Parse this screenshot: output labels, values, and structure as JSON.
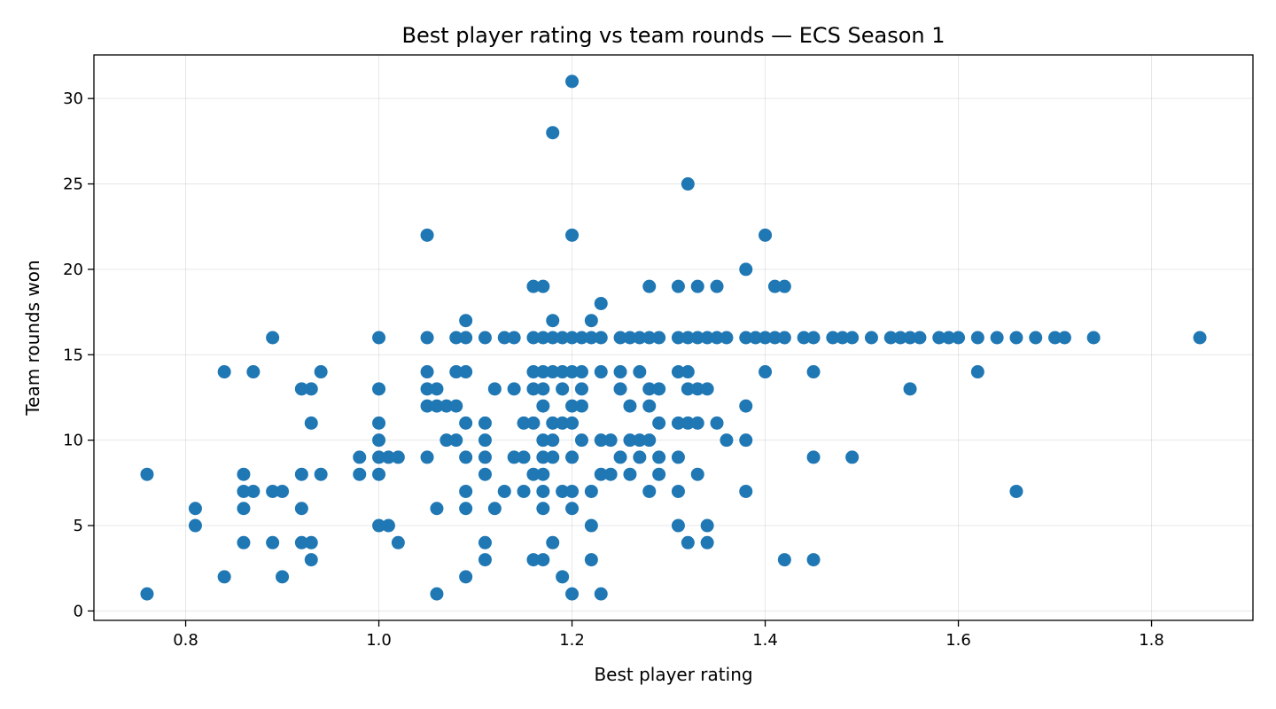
{
  "chart_data": {
    "type": "scatter",
    "title": "Best player rating vs team rounds — ECS Season 1",
    "xlabel": "Best player rating",
    "ylabel": "Team rounds won",
    "xlim": [
      0.705,
      1.905
    ],
    "ylim": [
      -0.55,
      32.55
    ],
    "xticks": [
      0.8,
      1.0,
      1.2,
      1.4,
      1.6,
      1.8
    ],
    "xtick_labels": [
      "0.8",
      "1.0",
      "1.2",
      "1.4",
      "1.6",
      "1.8"
    ],
    "yticks": [
      0,
      5,
      10,
      15,
      20,
      25,
      30
    ],
    "ytick_labels": [
      "0",
      "5",
      "10",
      "15",
      "20",
      "25",
      "30"
    ],
    "grid": true,
    "marker_color": "#1f77b4",
    "points": [
      [
        0.76,
        8
      ],
      [
        0.76,
        1
      ],
      [
        0.81,
        6
      ],
      [
        0.81,
        5
      ],
      [
        0.84,
        14
      ],
      [
        0.84,
        2
      ],
      [
        0.86,
        8
      ],
      [
        0.86,
        7
      ],
      [
        0.86,
        6
      ],
      [
        0.86,
        4
      ],
      [
        0.87,
        14
      ],
      [
        0.87,
        7
      ],
      [
        0.89,
        16
      ],
      [
        0.89,
        7
      ],
      [
        0.89,
        4
      ],
      [
        0.9,
        7
      ],
      [
        0.9,
        2
      ],
      [
        0.92,
        13
      ],
      [
        0.92,
        8
      ],
      [
        0.92,
        6
      ],
      [
        0.92,
        4
      ],
      [
        0.93,
        13
      ],
      [
        0.93,
        11
      ],
      [
        0.93,
        4
      ],
      [
        0.93,
        3
      ],
      [
        0.94,
        14
      ],
      [
        0.94,
        8
      ],
      [
        0.98,
        9
      ],
      [
        0.98,
        8
      ],
      [
        1.0,
        16
      ],
      [
        1.0,
        13
      ],
      [
        1.0,
        11
      ],
      [
        1.0,
        10
      ],
      [
        1.0,
        9
      ],
      [
        1.0,
        8
      ],
      [
        1.0,
        5
      ],
      [
        1.01,
        9
      ],
      [
        1.01,
        5
      ],
      [
        1.02,
        9
      ],
      [
        1.02,
        4
      ],
      [
        1.05,
        22
      ],
      [
        1.05,
        16
      ],
      [
        1.05,
        14
      ],
      [
        1.05,
        13
      ],
      [
        1.05,
        12
      ],
      [
        1.05,
        9
      ],
      [
        1.06,
        13
      ],
      [
        1.06,
        12
      ],
      [
        1.06,
        6
      ],
      [
        1.06,
        1
      ],
      [
        1.07,
        12
      ],
      [
        1.07,
        10
      ],
      [
        1.08,
        16
      ],
      [
        1.08,
        14
      ],
      [
        1.08,
        12
      ],
      [
        1.08,
        10
      ],
      [
        1.09,
        17
      ],
      [
        1.09,
        16
      ],
      [
        1.09,
        14
      ],
      [
        1.09,
        11
      ],
      [
        1.09,
        9
      ],
      [
        1.09,
        7
      ],
      [
        1.09,
        6
      ],
      [
        1.09,
        2
      ],
      [
        1.11,
        16
      ],
      [
        1.11,
        11
      ],
      [
        1.11,
        10
      ],
      [
        1.11,
        9
      ],
      [
        1.11,
        8
      ],
      [
        1.11,
        4
      ],
      [
        1.11,
        3
      ],
      [
        1.12,
        13
      ],
      [
        1.12,
        6
      ],
      [
        1.13,
        16
      ],
      [
        1.13,
        7
      ],
      [
        1.14,
        16
      ],
      [
        1.14,
        13
      ],
      [
        1.14,
        9
      ],
      [
        1.15,
        11
      ],
      [
        1.15,
        9
      ],
      [
        1.15,
        7
      ],
      [
        1.16,
        19
      ],
      [
        1.16,
        16
      ],
      [
        1.16,
        14
      ],
      [
        1.16,
        13
      ],
      [
        1.16,
        11
      ],
      [
        1.16,
        8
      ],
      [
        1.16,
        3
      ],
      [
        1.17,
        19
      ],
      [
        1.17,
        16
      ],
      [
        1.17,
        14
      ],
      [
        1.17,
        13
      ],
      [
        1.17,
        12
      ],
      [
        1.17,
        10
      ],
      [
        1.17,
        9
      ],
      [
        1.17,
        8
      ],
      [
        1.17,
        7
      ],
      [
        1.17,
        6
      ],
      [
        1.17,
        3
      ],
      [
        1.18,
        17
      ],
      [
        1.18,
        16
      ],
      [
        1.18,
        14
      ],
      [
        1.18,
        11
      ],
      [
        1.18,
        10
      ],
      [
        1.18,
        9
      ],
      [
        1.18,
        4
      ],
      [
        1.18,
        28
      ],
      [
        1.19,
        16
      ],
      [
        1.19,
        14
      ],
      [
        1.19,
        13
      ],
      [
        1.19,
        11
      ],
      [
        1.19,
        7
      ],
      [
        1.19,
        2
      ],
      [
        1.2,
        31
      ],
      [
        1.2,
        22
      ],
      [
        1.2,
        16
      ],
      [
        1.2,
        14
      ],
      [
        1.2,
        12
      ],
      [
        1.2,
        11
      ],
      [
        1.2,
        9
      ],
      [
        1.2,
        7
      ],
      [
        1.2,
        6
      ],
      [
        1.2,
        1
      ],
      [
        1.21,
        16
      ],
      [
        1.21,
        14
      ],
      [
        1.21,
        13
      ],
      [
        1.21,
        12
      ],
      [
        1.21,
        10
      ],
      [
        1.22,
        17
      ],
      [
        1.22,
        16
      ],
      [
        1.22,
        7
      ],
      [
        1.22,
        5
      ],
      [
        1.22,
        3
      ],
      [
        1.23,
        18
      ],
      [
        1.23,
        16
      ],
      [
        1.23,
        14
      ],
      [
        1.23,
        10
      ],
      [
        1.23,
        8
      ],
      [
        1.23,
        1
      ],
      [
        1.24,
        10
      ],
      [
        1.24,
        8
      ],
      [
        1.25,
        16
      ],
      [
        1.25,
        14
      ],
      [
        1.25,
        13
      ],
      [
        1.25,
        9
      ],
      [
        1.26,
        16
      ],
      [
        1.26,
        12
      ],
      [
        1.26,
        10
      ],
      [
        1.26,
        8
      ],
      [
        1.27,
        16
      ],
      [
        1.27,
        14
      ],
      [
        1.27,
        10
      ],
      [
        1.27,
        9
      ],
      [
        1.28,
        19
      ],
      [
        1.28,
        16
      ],
      [
        1.28,
        13
      ],
      [
        1.28,
        12
      ],
      [
        1.28,
        10
      ],
      [
        1.28,
        7
      ],
      [
        1.29,
        16
      ],
      [
        1.29,
        13
      ],
      [
        1.29,
        11
      ],
      [
        1.29,
        9
      ],
      [
        1.29,
        8
      ],
      [
        1.31,
        19
      ],
      [
        1.31,
        16
      ],
      [
        1.31,
        14
      ],
      [
        1.31,
        11
      ],
      [
        1.31,
        9
      ],
      [
        1.31,
        7
      ],
      [
        1.31,
        5
      ],
      [
        1.32,
        25
      ],
      [
        1.32,
        16
      ],
      [
        1.32,
        14
      ],
      [
        1.32,
        13
      ],
      [
        1.32,
        11
      ],
      [
        1.32,
        4
      ],
      [
        1.33,
        19
      ],
      [
        1.33,
        16
      ],
      [
        1.33,
        13
      ],
      [
        1.33,
        11
      ],
      [
        1.33,
        8
      ],
      [
        1.34,
        16
      ],
      [
        1.34,
        13
      ],
      [
        1.34,
        5
      ],
      [
        1.34,
        4
      ],
      [
        1.35,
        19
      ],
      [
        1.35,
        16
      ],
      [
        1.35,
        11
      ],
      [
        1.36,
        16
      ],
      [
        1.36,
        10
      ],
      [
        1.38,
        20
      ],
      [
        1.38,
        16
      ],
      [
        1.38,
        12
      ],
      [
        1.38,
        10
      ],
      [
        1.38,
        7
      ],
      [
        1.39,
        16
      ],
      [
        1.4,
        22
      ],
      [
        1.4,
        16
      ],
      [
        1.4,
        14
      ],
      [
        1.41,
        19
      ],
      [
        1.41,
        16
      ],
      [
        1.42,
        19
      ],
      [
        1.42,
        16
      ],
      [
        1.42,
        3
      ],
      [
        1.44,
        16
      ],
      [
        1.45,
        16
      ],
      [
        1.45,
        14
      ],
      [
        1.45,
        9
      ],
      [
        1.45,
        3
      ],
      [
        1.47,
        16
      ],
      [
        1.48,
        16
      ],
      [
        1.49,
        16
      ],
      [
        1.49,
        9
      ],
      [
        1.51,
        16
      ],
      [
        1.53,
        16
      ],
      [
        1.54,
        16
      ],
      [
        1.55,
        16
      ],
      [
        1.55,
        13
      ],
      [
        1.56,
        16
      ],
      [
        1.58,
        16
      ],
      [
        1.59,
        16
      ],
      [
        1.6,
        16
      ],
      [
        1.62,
        16
      ],
      [
        1.62,
        14
      ],
      [
        1.64,
        16
      ],
      [
        1.66,
        16
      ],
      [
        1.66,
        7
      ],
      [
        1.68,
        16
      ],
      [
        1.7,
        16
      ],
      [
        1.71,
        16
      ],
      [
        1.74,
        16
      ],
      [
        1.85,
        16
      ]
    ]
  }
}
